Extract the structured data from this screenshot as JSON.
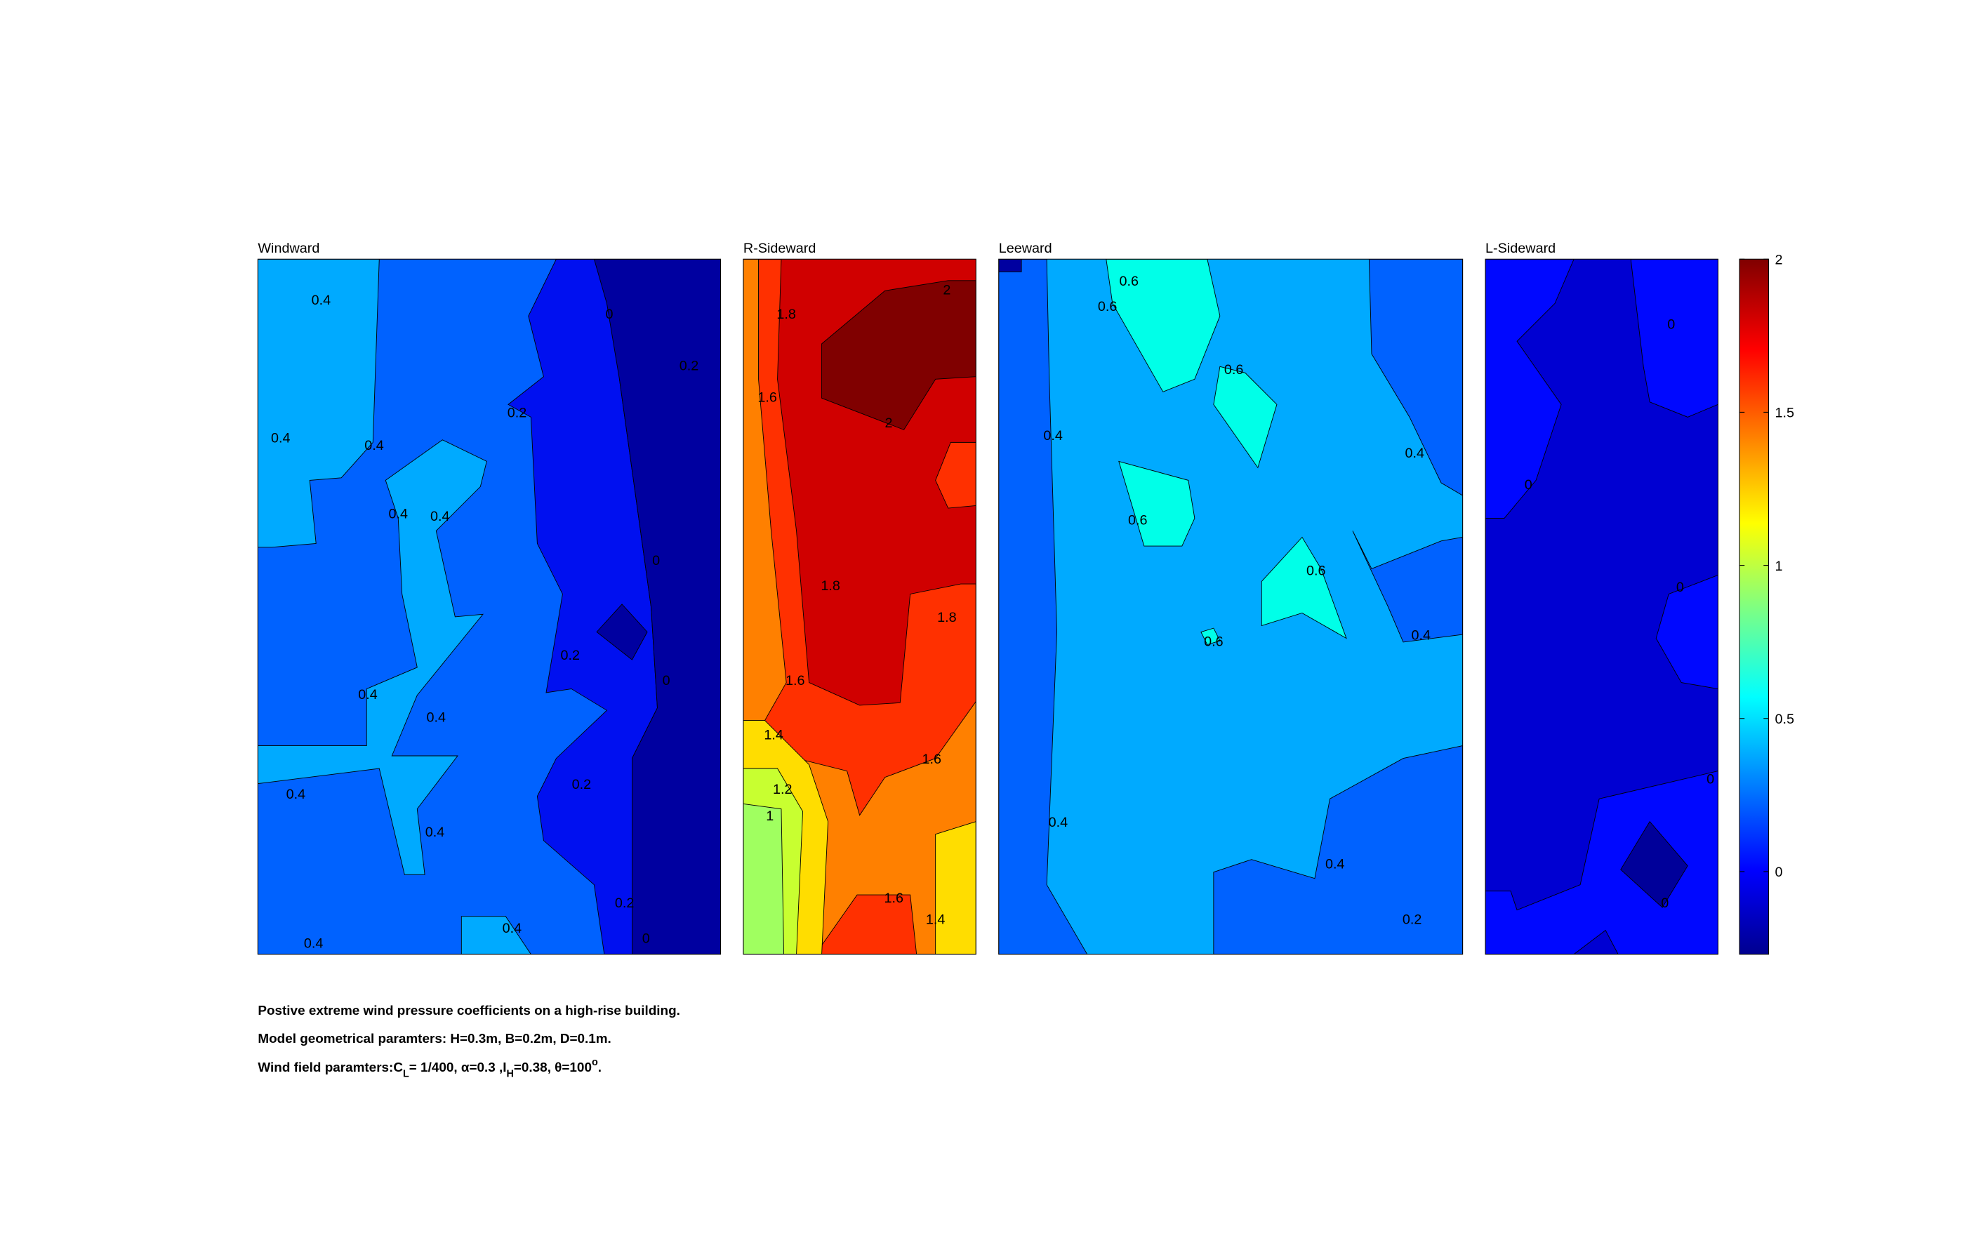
{
  "chart_data": [
    {
      "type": "contour",
      "title": "Windward",
      "contour_labels": [
        0.4,
        0.4,
        0.4,
        0.4,
        0.4,
        0.4,
        0.4,
        0.4,
        0.4,
        0.4,
        0.4,
        0.2,
        0,
        0.2,
        0,
        0.2,
        0,
        0.2,
        0.2,
        0
      ]
    },
    {
      "type": "contour",
      "title": "R-Sideward",
      "contour_labels": [
        1.8,
        2,
        1.6,
        2,
        1.8,
        1.8,
        1.6,
        1.4,
        1.2,
        1,
        1.6,
        1.6,
        1.4
      ]
    },
    {
      "type": "contour",
      "title": "Leeward",
      "contour_labels": [
        0.6,
        0.6,
        0.6,
        0.4,
        0.4,
        0.6,
        0.6,
        0.6,
        0.4,
        0.4,
        0.4,
        0.2
      ]
    },
    {
      "type": "contour",
      "title": "L-Sideward",
      "contour_labels": [
        0,
        0,
        0,
        0,
        0
      ]
    },
    {
      "type": "colorbar",
      "ylim": [
        -0.27,
        2
      ],
      "yticks": [
        0,
        0.5,
        1,
        1.5,
        2
      ]
    }
  ],
  "caption": {
    "line1": "Postive extreme  wind pressure coefficients on a high-rise building.",
    "line2": "Model geometrical paramters: H=0.3m, B=0.2m, D=0.1m.",
    "line3": [
      "Wind field paramters:C",
      "L",
      "= 1/400, α=0.3 ,I",
      "H",
      "=0.38, θ=100",
      "o",
      "."
    ]
  }
}
